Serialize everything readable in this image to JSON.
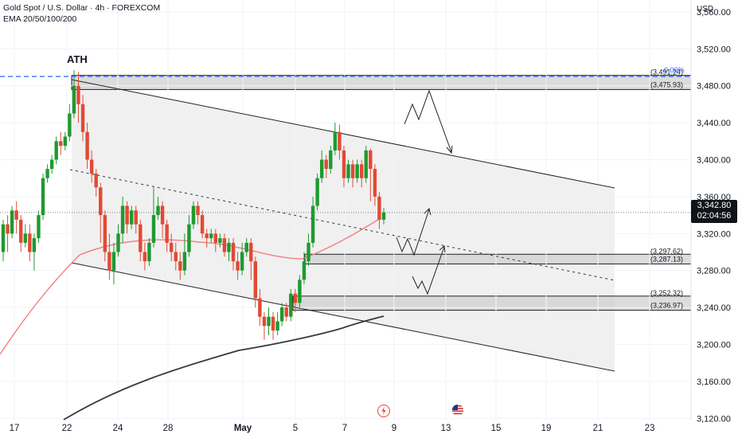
{
  "header": {
    "symbol_line": "Gold Spot / U.S. Dollar · 4h · FOREXCOM",
    "indicator_line": "EMA 20/50/100/200"
  },
  "currency": "USD",
  "ath_label": "ATH",
  "last_price": "3,342.80",
  "countdown": "02:04:56",
  "colors": {
    "up": "#26a69a",
    "down": "#ef5350",
    "up_candle": "#1e9a2f",
    "down_candle": "#e04a35",
    "ema_red": "#f08080",
    "ema_black": "#3a3a3a",
    "zone_fill": "#d0d0d0",
    "channel_fill": "#f0f0f0",
    "ath_line": "#2962ff"
  },
  "chart_data": {
    "type": "candlestick",
    "title": "Gold Spot / U.S. Dollar · 4h · FOREXCOM",
    "ylim": [
      3100,
      3580
    ],
    "y_ticks": [
      "3,560.00",
      "3,520.00",
      "3,480.00",
      "3,440.00",
      "3,400.00",
      "3,360.00",
      "3,320.00",
      "3,280.00",
      "3,240.00",
      "3,200.00",
      "3,160.00",
      "3,120.00"
    ],
    "x_ticks": [
      "17",
      "22",
      "24",
      "28",
      "May",
      "5",
      "7",
      "9",
      "13",
      "15",
      "19",
      "21",
      "23"
    ],
    "zones": [
      {
        "top_label": "(3,491.24)",
        "bottom_label": "(3,475.93)",
        "top": 3491.24,
        "bottom": 3475.93
      },
      {
        "top_label": "(3,297.62)",
        "bottom_label": "(3,287.13)",
        "top": 3297.62,
        "bottom": 3287.13
      },
      {
        "top_label": "(3,252.32)",
        "bottom_label": "(3,236.97)",
        "top": 3252.32,
        "bottom": 3236.97
      }
    ],
    "fib_label": "0.00%",
    "annotations": [
      "ATH"
    ],
    "last_price": 3342.8,
    "candles": [
      [
        3300,
        3330,
        3290,
        3335
      ],
      [
        3330,
        3320,
        3300,
        3340
      ],
      [
        3320,
        3345,
        3315,
        3350
      ],
      [
        3345,
        3335,
        3320,
        3355
      ],
      [
        3335,
        3310,
        3300,
        3340
      ],
      [
        3310,
        3320,
        3305,
        3330
      ],
      [
        3320,
        3300,
        3290,
        3330
      ],
      [
        3300,
        3315,
        3280,
        3320
      ],
      [
        3315,
        3340,
        3310,
        3345
      ],
      [
        3340,
        3380,
        3335,
        3385
      ],
      [
        3380,
        3390,
        3375,
        3395
      ],
      [
        3390,
        3400,
        3385,
        3405
      ],
      [
        3400,
        3420,
        3395,
        3425
      ],
      [
        3420,
        3415,
        3405,
        3430
      ],
      [
        3415,
        3425,
        3410,
        3430
      ],
      [
        3425,
        3450,
        3420,
        3460
      ],
      [
        3450,
        3480,
        3445,
        3497
      ],
      [
        3480,
        3460,
        3440,
        3495
      ],
      [
        3460,
        3430,
        3420,
        3470
      ],
      [
        3430,
        3400,
        3390,
        3440
      ],
      [
        3400,
        3385,
        3375,
        3410
      ],
      [
        3385,
        3370,
        3360,
        3390
      ],
      [
        3370,
        3340,
        3310,
        3375
      ],
      [
        3340,
        3300,
        3290,
        3345
      ],
      [
        3300,
        3280,
        3270,
        3320
      ],
      [
        3280,
        3300,
        3265,
        3310
      ],
      [
        3300,
        3320,
        3295,
        3330
      ],
      [
        3320,
        3350,
        3310,
        3360
      ],
      [
        3350,
        3330,
        3320,
        3355
      ],
      [
        3330,
        3345,
        3325,
        3350
      ],
      [
        3345,
        3330,
        3320,
        3350
      ],
      [
        3330,
        3300,
        3290,
        3335
      ],
      [
        3300,
        3290,
        3280,
        3310
      ],
      [
        3290,
        3310,
        3285,
        3315
      ],
      [
        3310,
        3340,
        3305,
        3370
      ],
      [
        3340,
        3350,
        3335,
        3360
      ],
      [
        3350,
        3330,
        3315,
        3355
      ],
      [
        3330,
        3310,
        3300,
        3335
      ],
      [
        3310,
        3300,
        3290,
        3320
      ],
      [
        3300,
        3290,
        3280,
        3310
      ],
      [
        3290,
        3280,
        3270,
        3300
      ],
      [
        3280,
        3300,
        3275,
        3320
      ],
      [
        3300,
        3330,
        3295,
        3340
      ],
      [
        3330,
        3350,
        3325,
        3355
      ],
      [
        3350,
        3340,
        3330,
        3355
      ],
      [
        3340,
        3320,
        3315,
        3345
      ],
      [
        3320,
        3315,
        3305,
        3325
      ],
      [
        3315,
        3320,
        3310,
        3325
      ],
      [
        3320,
        3310,
        3300,
        3325
      ],
      [
        3310,
        3315,
        3305,
        3320
      ],
      [
        3315,
        3300,
        3295,
        3320
      ],
      [
        3300,
        3310,
        3290,
        3315
      ],
      [
        3310,
        3290,
        3280,
        3315
      ],
      [
        3290,
        3280,
        3270,
        3300
      ],
      [
        3280,
        3300,
        3275,
        3310
      ],
      [
        3300,
        3310,
        3295,
        3315
      ],
      [
        3310,
        3290,
        3270,
        3315
      ],
      [
        3290,
        3250,
        3240,
        3295
      ],
      [
        3250,
        3230,
        3220,
        3260
      ],
      [
        3230,
        3220,
        3205,
        3235
      ],
      [
        3220,
        3230,
        3210,
        3240
      ],
      [
        3230,
        3215,
        3205,
        3235
      ],
      [
        3215,
        3225,
        3210,
        3235
      ],
      [
        3225,
        3240,
        3220,
        3245
      ],
      [
        3240,
        3230,
        3225,
        3245
      ],
      [
        3230,
        3255,
        3225,
        3260
      ],
      [
        3255,
        3245,
        3235,
        3260
      ],
      [
        3245,
        3270,
        3240,
        3275
      ],
      [
        3270,
        3290,
        3265,
        3300
      ],
      [
        3290,
        3310,
        3285,
        3320
      ],
      [
        3310,
        3350,
        3305,
        3360
      ],
      [
        3350,
        3380,
        3345,
        3385
      ],
      [
        3380,
        3400,
        3375,
        3410
      ],
      [
        3400,
        3390,
        3380,
        3405
      ],
      [
        3390,
        3410,
        3385,
        3415
      ],
      [
        3410,
        3430,
        3405,
        3440
      ],
      [
        3430,
        3410,
        3400,
        3438
      ],
      [
        3410,
        3380,
        3370,
        3415
      ],
      [
        3380,
        3395,
        3375,
        3400
      ],
      [
        3395,
        3380,
        3370,
        3400
      ],
      [
        3380,
        3395,
        3375,
        3400
      ],
      [
        3395,
        3380,
        3370,
        3400
      ],
      [
        3380,
        3410,
        3375,
        3415
      ],
      [
        3410,
        3390,
        3355,
        3412
      ],
      [
        3390,
        3360,
        3350,
        3395
      ],
      [
        3360,
        3335,
        3325,
        3365
      ],
      [
        3335,
        3343,
        3330,
        3348
      ]
    ]
  }
}
